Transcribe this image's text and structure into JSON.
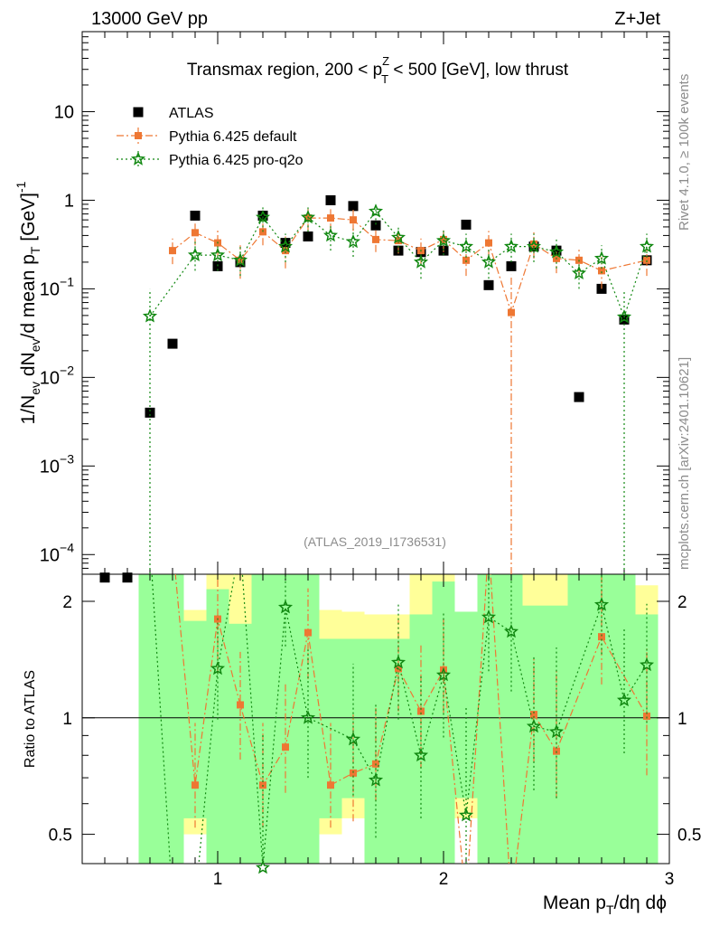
{
  "header": {
    "left": "13000 GeV pp",
    "right": "Z+Jet"
  },
  "side_labels": {
    "rivet": "Rivet 4.1.0, ≥ 100k events",
    "mcplots": "mcplots.cern.ch [arXiv:2401.10621]"
  },
  "colors": {
    "atlas": "#000000",
    "default": "#ee7733",
    "proq2o": "#118811",
    "band_green": "#99ff99",
    "band_yellow": "#ffff99"
  },
  "chart_data": [
    {
      "type": "scatter",
      "panel": "main",
      "title_text": {
        "main": "Transmax region, 200 < p",
        "sup": "Z",
        "sub": "T",
        "after": " < 500 [GeV], low thrust"
      },
      "ylabel": "1/N_ev dN_ev/d mean p_T [GeV]^-1",
      "ylabel_parts": {
        "a": "1/N",
        "b": "ev",
        "c": " dN",
        "d": "ev",
        "e": "/d mean p",
        "f": "T",
        "g": " [GeV]",
        "h": "-1"
      },
      "yscale": "log",
      "ylim": [
        6e-05,
        80
      ],
      "xlim": [
        0.4,
        3.0
      ],
      "ytick_labels": [
        {
          "v": 10,
          "base": "10",
          "exp": ""
        },
        {
          "v": 1,
          "base": "1",
          "exp": ""
        },
        {
          "v": 0.1,
          "base": "10",
          "exp": "−1"
        },
        {
          "v": 0.01,
          "base": "10",
          "exp": "−2"
        },
        {
          "v": 0.001,
          "base": "10",
          "exp": "−3"
        },
        {
          "v": 0.0001,
          "base": "10",
          "exp": "−4"
        }
      ],
      "watermark": "(ATLAS_2019_I1736531)",
      "legend": [
        {
          "key": "atlas",
          "label": "ATLAS"
        },
        {
          "key": "default",
          "label": "Pythia 6.425 default"
        },
        {
          "key": "proq2o",
          "label": "Pythia 6.425 pro-q2o"
        }
      ],
      "series": [
        {
          "key": "atlas",
          "name": "ATLAS",
          "x": [
            0.5,
            0.6,
            0.7,
            0.8,
            0.9,
            1.0,
            1.1,
            1.2,
            1.3,
            1.4,
            1.5,
            1.6,
            1.7,
            1.8,
            1.9,
            2.0,
            2.1,
            2.2,
            2.3,
            2.4,
            2.5,
            2.6,
            2.7,
            2.8,
            2.9
          ],
          "y": [
            5.5e-05,
            5.5e-05,
            0.004,
            0.024,
            0.67,
            0.18,
            0.2,
            0.67,
            0.33,
            0.39,
            1.0,
            0.86,
            0.52,
            0.27,
            0.26,
            0.27,
            0.53,
            0.11,
            0.18,
            0.3,
            0.27,
            0.006,
            0.1,
            0.045,
            0.21
          ]
        },
        {
          "key": "default",
          "name": "Pythia 6.425 default",
          "x": [
            0.8,
            0.9,
            1.0,
            1.1,
            1.2,
            1.3,
            1.4,
            1.5,
            1.6,
            1.7,
            1.8,
            1.9,
            2.0,
            2.1,
            2.2,
            2.3,
            2.4,
            2.5,
            2.6,
            2.7,
            2.9
          ],
          "y": [
            0.27,
            0.43,
            0.33,
            0.21,
            0.44,
            0.27,
            0.63,
            0.63,
            0.6,
            0.36,
            0.35,
            0.27,
            0.36,
            0.21,
            0.33,
            0.054,
            0.32,
            0.22,
            0.21,
            0.16,
            0.21
          ],
          "err_lo": [
            0.08,
            0.12,
            0.1,
            0.08,
            0.13,
            0.1,
            0.18,
            0.18,
            0.15,
            0.1,
            0.1,
            0.08,
            0.1,
            0.07,
            0.1,
            0.054,
            0.1,
            0.07,
            0.07,
            0.06,
            0.07
          ],
          "err_hi": [
            0.1,
            0.15,
            0.13,
            0.1,
            0.16,
            0.12,
            0.2,
            0.2,
            0.18,
            0.12,
            0.12,
            0.1,
            0.12,
            0.08,
            0.12,
            0.09,
            0.12,
            0.08,
            0.08,
            0.07,
            0.08
          ]
        },
        {
          "key": "proq2o",
          "name": "Pythia 6.425 pro-q2o",
          "x": [
            0.7,
            0.9,
            1.0,
            1.1,
            1.2,
            1.3,
            1.4,
            1.5,
            1.6,
            1.7,
            1.8,
            1.9,
            2.0,
            2.1,
            2.2,
            2.3,
            2.4,
            2.5,
            2.6,
            2.7,
            2.8,
            2.9
          ],
          "y": [
            0.049,
            0.24,
            0.24,
            0.21,
            0.64,
            0.3,
            0.64,
            0.4,
            0.34,
            0.75,
            0.38,
            0.2,
            0.35,
            0.3,
            0.2,
            0.3,
            0.3,
            0.26,
            0.15,
            0.22,
            0.048,
            0.3
          ],
          "err_lo": [
            0.049,
            0.08,
            0.08,
            0.07,
            0.2,
            0.1,
            0.2,
            0.13,
            0.11,
            0.22,
            0.12,
            0.07,
            0.11,
            0.1,
            0.07,
            0.1,
            0.1,
            0.09,
            0.05,
            0.07,
            0.048,
            0.1
          ],
          "err_hi": [
            0.05,
            0.1,
            0.1,
            0.09,
            0.2,
            0.12,
            0.2,
            0.15,
            0.13,
            0.2,
            0.14,
            0.09,
            0.13,
            0.12,
            0.09,
            0.12,
            0.12,
            0.1,
            0.07,
            0.09,
            0.05,
            0.12
          ]
        }
      ]
    },
    {
      "type": "scatter",
      "panel": "ratio",
      "ylabel": "Ratio to ATLAS",
      "xlabel_parts": {
        "a": "Mean p",
        "b": "T",
        "c": "/dη dϕ"
      },
      "yscale": "log",
      "ylim": [
        0.42,
        2.35
      ],
      "xlim": [
        0.4,
        3.0
      ],
      "xticks": [
        1,
        2,
        3
      ],
      "yticks": [
        0.5,
        1,
        2
      ],
      "reference_line": 1,
      "bands": [
        {
          "x0": 0.65,
          "x1": 0.85,
          "yellow": [
            0.01,
            100
          ],
          "green": [
            0.01,
            100
          ]
        },
        {
          "x0": 0.85,
          "x1": 0.95,
          "yellow": [
            0.5,
            1.9
          ],
          "green": [
            0.55,
            1.78
          ]
        },
        {
          "x0": 0.95,
          "x1": 1.05,
          "yellow": [
            0.01,
            100
          ],
          "green": [
            0.01,
            2.15
          ]
        },
        {
          "x0": 1.05,
          "x1": 1.15,
          "yellow": [
            0.01,
            100
          ],
          "green": [
            0.01,
            1.75
          ]
        },
        {
          "x0": 1.15,
          "x1": 1.35,
          "yellow": [
            0.01,
            100
          ],
          "green": [
            0.01,
            100
          ]
        },
        {
          "x0": 1.35,
          "x1": 1.45,
          "yellow": [
            0.01,
            100
          ],
          "green": [
            0.01,
            100
          ]
        },
        {
          "x0": 1.45,
          "x1": 1.55,
          "yellow": [
            0.5,
            1.9
          ],
          "green": [
            0.55,
            1.6
          ]
        },
        {
          "x0": 1.55,
          "x1": 1.65,
          "yellow": [
            0.55,
            1.88
          ],
          "green": [
            0.62,
            1.6
          ]
        },
        {
          "x0": 1.65,
          "x1": 1.75,
          "yellow": [
            0.01,
            1.85
          ],
          "green": [
            0.01,
            1.6
          ]
        },
        {
          "x0": 1.75,
          "x1": 1.85,
          "yellow": [
            0.01,
            1.85
          ],
          "green": [
            0.01,
            1.6
          ]
        },
        {
          "x0": 1.85,
          "x1": 1.95,
          "yellow": [
            0.01,
            100
          ],
          "green": [
            0.01,
            1.85
          ]
        },
        {
          "x0": 1.95,
          "x1": 2.05,
          "yellow": [
            0.01,
            100
          ],
          "green": [
            0.01,
            2.25
          ]
        },
        {
          "x0": 2.05,
          "x1": 2.15,
          "yellow": [
            0.55,
            1.88
          ],
          "green": [
            0.62,
            1.88
          ]
        },
        {
          "x0": 2.15,
          "x1": 2.35,
          "yellow": [
            0.01,
            100
          ],
          "green": [
            0.01,
            100
          ]
        },
        {
          "x0": 2.35,
          "x1": 2.55,
          "yellow": [
            0.01,
            100
          ],
          "green": [
            0.01,
            1.95
          ]
        },
        {
          "x0": 2.55,
          "x1": 2.65,
          "yellow": [
            0.01,
            100
          ],
          "green": [
            0.01,
            100
          ]
        },
        {
          "x0": 2.65,
          "x1": 2.75,
          "yellow": [
            0.01,
            100
          ],
          "green": [
            0.01,
            100
          ]
        },
        {
          "x0": 2.75,
          "x1": 2.85,
          "yellow": [
            0.01,
            100
          ],
          "green": [
            0.01,
            100
          ]
        },
        {
          "x0": 2.85,
          "x1": 2.95,
          "yellow": [
            0.01,
            2.2
          ],
          "green": [
            0.01,
            1.85
          ]
        }
      ],
      "series": [
        {
          "key": "default",
          "name": "Pythia 6.425 default",
          "x": [
            0.9,
            1.0,
            1.1,
            1.2,
            1.3,
            1.4,
            1.5,
            1.6,
            1.7,
            1.8,
            1.9,
            2.0,
            2.4,
            2.5,
            2.7,
            2.9
          ],
          "y": [
            0.67,
            1.8,
            1.08,
            0.67,
            0.84,
            1.66,
            0.67,
            0.72,
            0.76,
            1.34,
            1.04,
            1.33,
            1.02,
            0.82,
            1.62,
            1.01
          ],
          "err_lo": [
            0.15,
            0.5,
            0.3,
            0.15,
            0.2,
            0.4,
            0.15,
            0.18,
            0.15,
            0.3,
            0.3,
            0.3,
            0.25,
            0.2,
            0.4,
            0.3
          ],
          "err_hi": [
            0.3,
            0.5,
            0.4,
            0.3,
            0.4,
            0.5,
            0.3,
            0.3,
            0.3,
            0.45,
            0.5,
            0.5,
            0.4,
            0.5,
            0.7,
            0.5
          ],
          "offscale": [
            {
              "x": 0.8,
              "dir": "up"
            },
            {
              "x": 2.1,
              "dir": "down"
            },
            {
              "x": 2.2,
              "dir": "up"
            },
            {
              "x": 2.3,
              "dir": "down"
            }
          ]
        },
        {
          "key": "proq2o",
          "name": "Pythia 6.425 pro-q2o",
          "x": [
            1.0,
            1.2,
            1.3,
            1.4,
            1.6,
            1.7,
            1.8,
            1.9,
            2.0,
            2.1,
            2.2,
            2.3,
            2.4,
            2.5,
            2.7,
            2.8,
            2.9
          ],
          "y": [
            1.34,
            0.41,
            1.93,
            1.0,
            0.88,
            0.69,
            1.39,
            0.8,
            1.29,
            0.56,
            1.82,
            1.67,
            0.95,
            0.92,
            1.96,
            1.11,
            1.37
          ],
          "err_lo": [
            0.35,
            0.1,
            0.4,
            0.3,
            0.25,
            0.2,
            0.4,
            0.25,
            0.4,
            0.15,
            0.5,
            0.5,
            0.3,
            0.3,
            0.5,
            0.3,
            0.4
          ],
          "err_hi": [
            0.5,
            0.5,
            0.5,
            0.5,
            0.5,
            0.4,
            0.6,
            0.5,
            0.6,
            0.5,
            0.6,
            0.6,
            0.5,
            0.6,
            0.5,
            0.6,
            0.6
          ],
          "offscale": [
            {
              "x": 0.7,
              "dir": "up"
            },
            {
              "x": 0.8,
              "dir": "down"
            },
            {
              "x": 0.9,
              "dir": "down"
            },
            {
              "x": 1.1,
              "dir": "up"
            }
          ]
        }
      ]
    }
  ]
}
